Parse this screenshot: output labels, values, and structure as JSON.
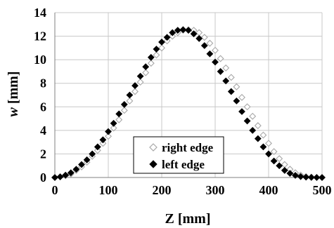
{
  "chart_data": {
    "type": "scatter",
    "title": "",
    "xlabel": "Z [mm]",
    "ylabel_main": "w",
    "ylabel_unit": "[mm]",
    "xlim": [
      0,
      500
    ],
    "ylim": [
      0,
      14
    ],
    "xticks": [
      0,
      100,
      200,
      300,
      400,
      500
    ],
    "yticks": [
      0,
      2,
      4,
      6,
      8,
      10,
      12,
      14
    ],
    "grid": true,
    "legend_position": "bottom-center",
    "series": [
      {
        "name": "right edge",
        "marker": "open-diamond",
        "color": "#a8a8a8",
        "x": [
          0,
          10,
          20,
          30,
          40,
          50,
          60,
          70,
          80,
          90,
          100,
          110,
          120,
          130,
          140,
          150,
          160,
          170,
          180,
          190,
          200,
          210,
          220,
          230,
          240,
          250,
          260,
          270,
          280,
          290,
          300,
          310,
          320,
          330,
          340,
          350,
          360,
          370,
          380,
          390,
          400,
          410,
          420,
          430,
          440,
          450,
          460,
          470,
          480,
          490,
          500
        ],
        "y": [
          0.0,
          0.05,
          0.15,
          0.3,
          0.6,
          0.9,
          1.3,
          1.8,
          2.3,
          2.9,
          3.5,
          4.2,
          4.9,
          5.7,
          6.5,
          7.3,
          8.1,
          8.9,
          9.7,
          10.4,
          11.0,
          11.6,
          12.0,
          12.3,
          12.5,
          12.55,
          12.5,
          12.3,
          11.9,
          11.4,
          10.8,
          10.1,
          9.3,
          8.5,
          7.7,
          6.8,
          6.0,
          5.2,
          4.4,
          3.6,
          2.9,
          2.2,
          1.6,
          1.1,
          0.7,
          0.4,
          0.2,
          0.08,
          0.03,
          0.01,
          0.0
        ]
      },
      {
        "name": "left edge",
        "marker": "filled-diamond",
        "color": "#000000",
        "x": [
          0,
          10,
          20,
          30,
          40,
          50,
          60,
          70,
          80,
          90,
          100,
          110,
          120,
          130,
          140,
          150,
          160,
          170,
          180,
          190,
          200,
          210,
          220,
          230,
          240,
          250,
          260,
          270,
          280,
          290,
          300,
          310,
          320,
          330,
          340,
          350,
          360,
          370,
          380,
          390,
          400,
          410,
          420,
          430,
          440,
          450,
          460,
          470,
          480,
          490,
          500
        ],
        "y": [
          0.0,
          0.06,
          0.2,
          0.4,
          0.7,
          1.1,
          1.5,
          2.0,
          2.6,
          3.2,
          3.9,
          4.6,
          5.4,
          6.2,
          7.0,
          7.8,
          8.6,
          9.4,
          10.2,
          10.9,
          11.5,
          11.9,
          12.3,
          12.5,
          12.55,
          12.5,
          12.2,
          11.8,
          11.2,
          10.5,
          9.8,
          9.0,
          8.2,
          7.3,
          6.5,
          5.6,
          4.8,
          4.0,
          3.3,
          2.6,
          2.0,
          1.4,
          1.0,
          0.6,
          0.35,
          0.18,
          0.08,
          0.03,
          0.01,
          0.0,
          0.0
        ]
      }
    ]
  }
}
